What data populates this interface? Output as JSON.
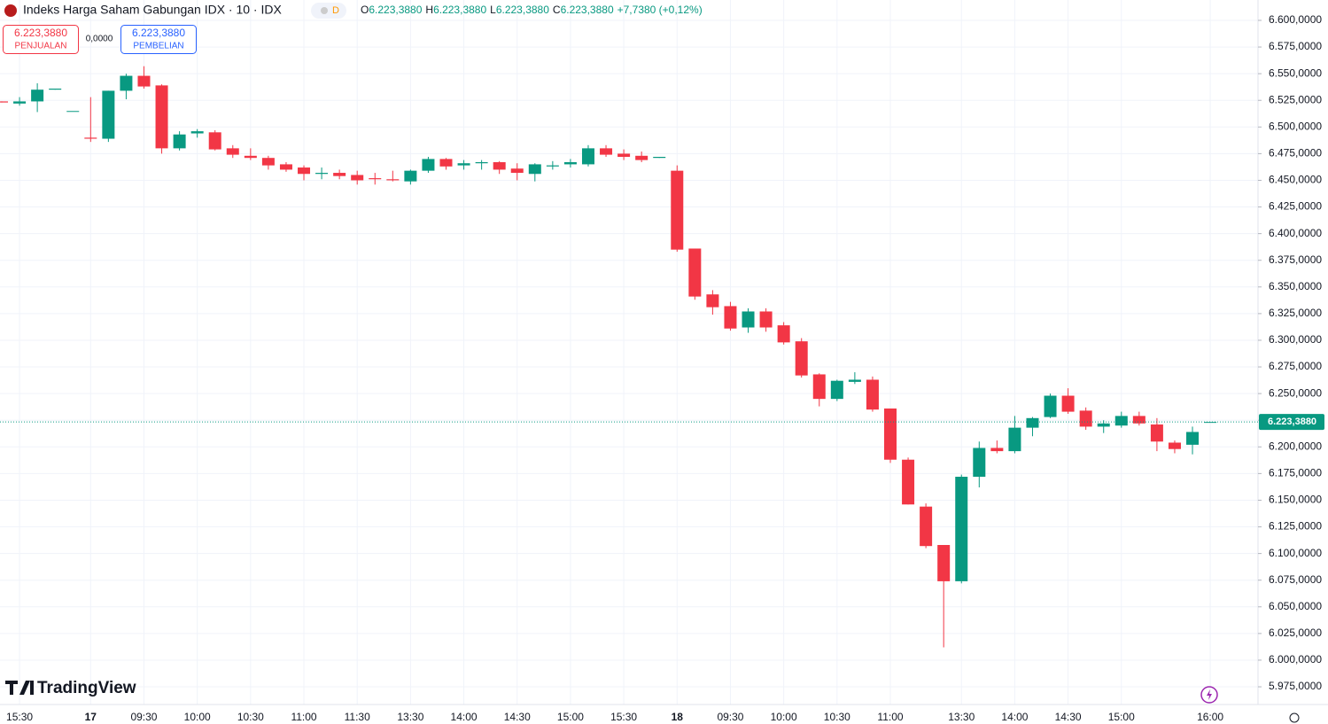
{
  "header": {
    "title": "Indeks Harga Saham Gabungan IDX · 10 · IDX",
    "badge": "D",
    "ohlc": [
      {
        "key": "O",
        "value": "6.223,3880"
      },
      {
        "key": "H",
        "value": "6.223,3880"
      },
      {
        "key": "L",
        "value": "6.223,3880"
      },
      {
        "key": "C",
        "value": "6.223,3880"
      }
    ],
    "change": "+7,7380 (+0,12%)"
  },
  "trade": {
    "sell_price": "6.223,3880",
    "sell_label": "PENJUALAN",
    "spread": "0,0000",
    "buy_price": "6.223,3880",
    "buy_label": "PEMBELIAN"
  },
  "brand": "TradingView",
  "chart_data": {
    "type": "candlestick",
    "up_color": "#089981",
    "down_color": "#f23645",
    "grid": true,
    "categories": [
      null,
      "15:30",
      null,
      null,
      null,
      "17",
      null,
      null,
      "09:30",
      null,
      null,
      "10:00",
      null,
      null,
      "10:30",
      null,
      null,
      "11:00",
      null,
      null,
      "11:30",
      null,
      null,
      "13:30",
      null,
      null,
      "14:00",
      null,
      null,
      "14:30",
      null,
      null,
      "15:00",
      null,
      null,
      "15:30",
      null,
      null,
      "18",
      null,
      null,
      "09:30",
      null,
      null,
      "10:00",
      null,
      null,
      "10:30",
      null,
      null,
      "11:00",
      null,
      null,
      null,
      "13:30",
      null,
      null,
      "14:00",
      null,
      null,
      "14:30",
      null,
      null,
      "15:00",
      null,
      null,
      null,
      null,
      "16:00"
    ],
    "open": [
      6524,
      6522,
      6524,
      6535,
      6515,
      6490,
      6489,
      6534,
      6548,
      6539,
      6480,
      6494,
      6495,
      6480,
      6473,
      6471,
      6465,
      6462,
      6456,
      6457,
      6455,
      6452,
      6451,
      6449,
      6459,
      6470,
      6464,
      6466,
      6467,
      6461,
      6456,
      6463,
      6465,
      6465,
      6480,
      6475,
      6473,
      6471,
      6459,
      6386,
      6343,
      6332,
      6312,
      6327,
      6314,
      6299,
      6268,
      6245,
      6261,
      6263,
      6236,
      6188,
      6144,
      6108,
      6074,
      6172,
      6199,
      6196,
      6218,
      6228,
      6248,
      6234,
      6219,
      6220,
      6229,
      6221,
      6204,
      6202,
      6223.388
    ],
    "high": [
      6524,
      6528,
      6541,
      6536,
      6515,
      6528,
      6534,
      6550,
      6557,
      6540,
      6496,
      6498,
      6497,
      6483,
      6480,
      6473,
      6467,
      6464,
      6462,
      6460,
      6459,
      6457,
      6459,
      6460,
      6472,
      6471,
      6469,
      6469,
      6468,
      6466,
      6466,
      6468,
      6470,
      6483,
      6483,
      6479,
      6477,
      6472,
      6464,
      6386,
      6347,
      6336,
      6330,
      6330,
      6317,
      6302,
      6269,
      6263,
      6270,
      6266,
      6236,
      6190,
      6147,
      6108,
      6174,
      6205,
      6206,
      6229,
      6228,
      6250,
      6255,
      6237,
      6225,
      6233,
      6233,
      6227,
      6206,
      6219,
      6223.388
    ],
    "low": [
      6523,
      6520,
      6514,
      6535,
      6515,
      6486,
      6486,
      6526,
      6536,
      6475,
      6478,
      6490,
      6478,
      6471,
      6469,
      6460,
      6458,
      6450,
      6451,
      6451,
      6446,
      6446,
      6449,
      6446,
      6457,
      6460,
      6460,
      6460,
      6456,
      6450,
      6449,
      6460,
      6462,
      6463,
      6472,
      6469,
      6467,
      6471,
      6383,
      6338,
      6324,
      6309,
      6307,
      6308,
      6296,
      6265,
      6238,
      6243,
      6259,
      6233,
      6185,
      6146,
      6105,
      6012,
      6072,
      6162,
      6194,
      6194,
      6210,
      6227,
      6231,
      6216,
      6213,
      6218,
      6220,
      6196,
      6194,
      6193,
      6223.388
    ],
    "close": [
      6523,
      6524,
      6535,
      6536,
      6515,
      6489,
      6534,
      6548,
      6538,
      6480,
      6493,
      6496,
      6479,
      6474,
      6471,
      6464,
      6460,
      6456,
      6457,
      6454,
      6450,
      6451,
      6450,
      6459,
      6470,
      6463,
      6466,
      6467,
      6460,
      6457,
      6465,
      6464,
      6467,
      6480,
      6474,
      6472,
      6469,
      6472,
      6385,
      6341,
      6331,
      6311,
      6327,
      6312,
      6298,
      6267,
      6245,
      6262,
      6263,
      6235,
      6188,
      6146,
      6107,
      6074,
      6172,
      6199,
      6196,
      6218,
      6227,
      6248,
      6233,
      6219,
      6222,
      6229,
      6222,
      6205,
      6198,
      6214,
      6223.388
    ],
    "ylim": [
      5958.4,
      6619.1
    ],
    "yticks": [
      {
        "value": 5975,
        "label": "5.975,0000"
      },
      {
        "value": 6000,
        "label": "6.000,0000"
      },
      {
        "value": 6025,
        "label": "6.025,0000"
      },
      {
        "value": 6050,
        "label": "6.050,0000"
      },
      {
        "value": 6075,
        "label": "6.075,0000"
      },
      {
        "value": 6100,
        "label": "6.100,0000"
      },
      {
        "value": 6125,
        "label": "6.125,0000"
      },
      {
        "value": 6150,
        "label": "6.150,0000"
      },
      {
        "value": 6175,
        "label": "6.175,0000"
      },
      {
        "value": 6200,
        "label": "6.200,0000"
      },
      {
        "value": 6225,
        "label": "6.225,0000"
      },
      {
        "value": 6250,
        "label": "6.250,0000"
      },
      {
        "value": 6275,
        "label": "6.275,0000"
      },
      {
        "value": 6300,
        "label": "6.300,0000"
      },
      {
        "value": 6325,
        "label": "6.325,0000"
      },
      {
        "value": 6350,
        "label": "6.350,0000"
      },
      {
        "value": 6375,
        "label": "6.375,0000"
      },
      {
        "value": 6400,
        "label": "6.400,0000"
      },
      {
        "value": 6425,
        "label": "6.425,0000"
      },
      {
        "value": 6450,
        "label": "6.450,0000"
      },
      {
        "value": 6475,
        "label": "6.475,0000"
      },
      {
        "value": 6500,
        "label": "6.500,0000"
      },
      {
        "value": 6525,
        "label": "6.525,0000"
      },
      {
        "value": 6550,
        "label": "6.550,0000"
      },
      {
        "value": 6575,
        "label": "6.575,0000"
      },
      {
        "value": 6600,
        "label": "6.600,0000"
      }
    ],
    "last_price": {
      "value": 6223.388,
      "label": "6.223,3880"
    }
  }
}
